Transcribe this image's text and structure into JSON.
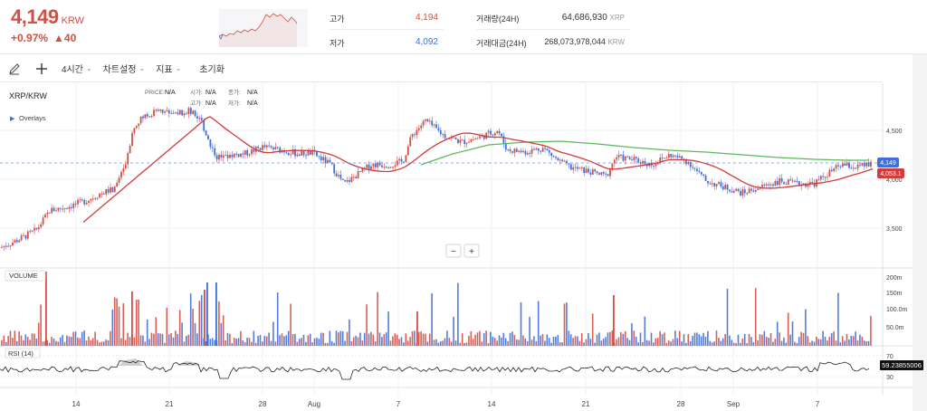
{
  "ticker": {
    "price": "4,149",
    "unit": "KRW",
    "change_pct": "+0.97%",
    "change_amt": "▲40",
    "color": "#d24f45"
  },
  "stats": {
    "high_label": "고가",
    "high_value": "4,194",
    "low_label": "저가",
    "low_value": "4,092",
    "volume_label": "거래량(24H)",
    "volume_value": "64,686,930",
    "volume_unit": "XRP",
    "amount_label": "거래대금(24H)",
    "amount_value": "268,073,978,044",
    "amount_unit": "KRW"
  },
  "toolbar": {
    "pen_icon": "pencil-icon",
    "crosshair_icon": "plus-icon",
    "interval_label": "4시간",
    "chart_settings_label": "차트설정",
    "indicators_label": "지표",
    "reset_label": "초기화"
  },
  "chart": {
    "symbol": "XRP/KRW",
    "overlays_label": "Overlays",
    "ohlc": [
      {
        "label": "PRICE:",
        "value": "N/A"
      },
      {
        "label": "시가:",
        "value": "N/A"
      },
      {
        "label": "종가:",
        "value": "N/A"
      },
      {
        "label": "고가:",
        "value": "N/A"
      },
      {
        "label": "저가:",
        "value": "N/A"
      }
    ],
    "current_price_tag": "4,149",
    "ma_tag": "4,053.1",
    "volume_label": "VOLUME",
    "rsi_label": "RSI (14)",
    "rsi_value_tag": "59.23855006",
    "zoom_out": "−",
    "zoom_in": "+",
    "price_ticks": [
      "4,500",
      "4,000",
      "3,500"
    ],
    "volume_ticks": [
      "200m",
      "150m",
      "100.0m",
      "50.0m"
    ],
    "rsi_ticks": [
      "70",
      "30"
    ],
    "x_ticks": [
      "14",
      "21",
      "28",
      "Aug",
      "7",
      "14",
      "21",
      "28",
      "Sep",
      "7"
    ],
    "up_color": "#d24f45",
    "down_color": "#3f6fd8",
    "ma_short_color": "#d33b3b",
    "ma_long_color": "#5cb85c"
  },
  "chart_data": {
    "type": "candlestick",
    "symbol": "XRP/KRW",
    "interval": "4시간",
    "x": [
      "14",
      "21",
      "28",
      "Aug",
      "7",
      "14",
      "21",
      "28",
      "Sep",
      "7"
    ],
    "close_approx": [
      3700,
      4700,
      4250,
      4150,
      4550,
      4300,
      4150,
      4150,
      3950,
      4149
    ],
    "last_close": 4149,
    "ma_last": 4053.1,
    "rsi_last": 59.23855006,
    "ylim": [
      3300,
      4900
    ]
  }
}
